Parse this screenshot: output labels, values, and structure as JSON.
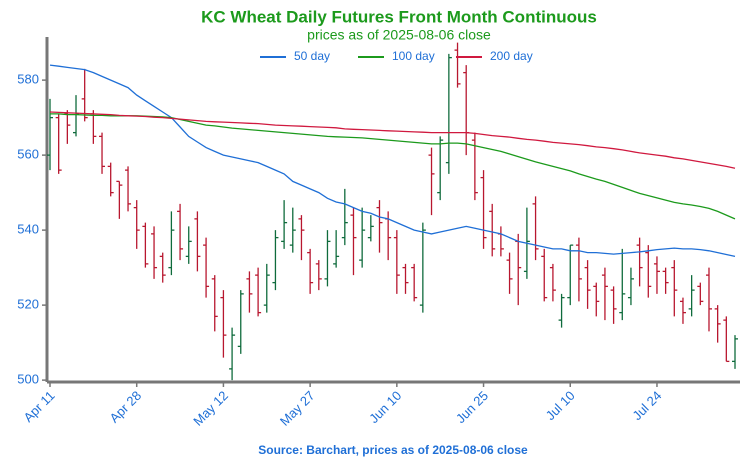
{
  "chart_data": {
    "type": "ohlc",
    "title": "KC Wheat Daily Futures Front Month Continuous",
    "subtitle": "prices as of 2025-08-06 close",
    "source": "Source: Barchart, prices as of 2025-08-06 close",
    "categories": [
      "Apr 11",
      null,
      null,
      null,
      null,
      null,
      null,
      null,
      null,
      null,
      "Apr 28",
      null,
      null,
      null,
      null,
      null,
      null,
      null,
      null,
      null,
      "May 12",
      null,
      null,
      null,
      null,
      null,
      null,
      null,
      null,
      null,
      "May 27",
      null,
      null,
      null,
      null,
      null,
      null,
      null,
      null,
      null,
      "Jun 10",
      null,
      null,
      null,
      null,
      null,
      null,
      null,
      null,
      null,
      "Jun 25",
      null,
      null,
      null,
      null,
      null,
      null,
      null,
      null,
      null,
      "Jul 10",
      null,
      null,
      null,
      null,
      null,
      null,
      null,
      null,
      null,
      "Jul 24",
      null,
      null,
      null,
      null,
      null,
      null,
      null,
      null,
      null
    ],
    "ohlc": {
      "up_color": "#0f6b3c",
      "down_color": "#b8172f",
      "open": [
        560,
        570,
        571,
        566,
        575,
        571,
        565,
        557,
        553,
        556,
        546,
        541,
        539,
        533,
        530,
        545,
        533,
        543,
        536,
        527,
        522,
        503,
        509,
        527,
        528,
        520,
        526,
        537,
        536,
        543,
        534,
        531,
        527,
        531,
        538,
        544,
        532,
        538,
        546,
        543,
        538,
        530,
        530,
        520,
        560,
        550,
        558,
        588,
        582,
        564,
        554,
        545,
        539,
        532,
        537,
        529,
        547,
        533,
        530,
        516,
        522,
        536,
        530,
        525,
        528,
        524,
        518,
        522,
        536,
        534,
        531,
        529,
        530,
        521,
        519,
        525,
        528,
        519,
        516,
        505
      ],
      "high": [
        575,
        571,
        572,
        576,
        583,
        572,
        566,
        558,
        553,
        557,
        548,
        542,
        541,
        534,
        545,
        547,
        541,
        545,
        538,
        528,
        524,
        514,
        524,
        529,
        530,
        531,
        540,
        548,
        546,
        544,
        535,
        532,
        540,
        540,
        551,
        546,
        546,
        544,
        548,
        545,
        540,
        531,
        531,
        542,
        562,
        565,
        587,
        590,
        584,
        566,
        556,
        547,
        541,
        534,
        539,
        546,
        549,
        535,
        531,
        523,
        536,
        538,
        532,
        526,
        530,
        525,
        535,
        530,
        538,
        536,
        533,
        530,
        532,
        522,
        528,
        526,
        530,
        520,
        517,
        512
      ],
      "low": [
        556,
        555,
        563,
        565,
        569,
        563,
        555,
        549,
        543,
        545,
        535,
        530,
        527,
        526,
        528,
        532,
        531,
        529,
        522,
        513,
        506,
        500,
        507,
        518,
        517,
        518,
        524,
        535,
        534,
        532,
        523,
        524,
        525,
        530,
        536,
        528,
        530,
        537,
        534,
        532,
        523,
        523,
        521,
        518,
        544,
        548,
        555,
        578,
        560,
        548,
        535,
        533,
        533,
        523,
        520,
        527,
        532,
        521,
        521,
        514,
        520,
        521,
        519,
        517,
        516,
        515,
        516,
        520,
        525,
        522,
        523,
        523,
        517,
        515,
        517,
        520,
        513,
        510,
        505,
        503
      ],
      "close": [
        570,
        556,
        568,
        571,
        570,
        565,
        557,
        550,
        552,
        547,
        540,
        531,
        530,
        528,
        540,
        535,
        537,
        533,
        525,
        517,
        512,
        512,
        523,
        523,
        518,
        528,
        538,
        542,
        540,
        540,
        526,
        527,
        537,
        533,
        542,
        538,
        540,
        541,
        542,
        538,
        528,
        526,
        522,
        540,
        555,
        564,
        586,
        579,
        566,
        550,
        538,
        535,
        535,
        527,
        530,
        537,
        535,
        522,
        524,
        522,
        536,
        527,
        524,
        521,
        525,
        519,
        523,
        527,
        530,
        525,
        529,
        526,
        524,
        518,
        524,
        521,
        519,
        515,
        505,
        511
      ]
    },
    "series": [
      {
        "name": "50 day",
        "color": "#1f6fd6",
        "values": [
          584,
          583.7,
          583.4,
          583.1,
          582.8,
          582,
          581,
          580,
          579,
          578,
          576,
          574.5,
          573,
          571.5,
          570,
          567.5,
          565,
          563.5,
          562,
          561,
          560,
          559.5,
          559,
          558.5,
          558,
          557,
          556,
          555,
          553,
          552,
          551,
          550,
          548.5,
          547.5,
          547,
          546,
          545,
          544.5,
          543.5,
          543,
          542,
          541,
          540,
          539.5,
          539,
          539.5,
          540,
          540.5,
          541,
          540.5,
          540,
          539.5,
          539,
          538,
          537,
          536.5,
          536,
          535.5,
          535,
          535,
          534.5,
          534.5,
          534,
          534,
          533.8,
          533.6,
          533.8,
          534,
          534.2,
          534.5,
          534.8,
          535,
          535.2,
          535,
          535,
          534.8,
          534.5,
          534,
          533.5,
          533
        ]
      },
      {
        "name": "100 day",
        "color": "#1c9a1c",
        "values": [
          571,
          571,
          570.8,
          570.8,
          570.7,
          570.6,
          570.6,
          570.5,
          570.5,
          570.5,
          570.5,
          570.4,
          570.3,
          570.2,
          570,
          569.5,
          569,
          568.5,
          568,
          567.8,
          567.5,
          567.2,
          567,
          566.8,
          566.6,
          566.4,
          566.2,
          566,
          565.8,
          565.6,
          565.4,
          565.2,
          565,
          564.9,
          564.8,
          564.7,
          564.6,
          564.4,
          564.2,
          564,
          563.8,
          563.6,
          563.4,
          563.2,
          563,
          563,
          563.2,
          563.2,
          563,
          562.5,
          562,
          561.5,
          561,
          560.3,
          559.6,
          558.9,
          558.2,
          557.6,
          557,
          556.4,
          555.8,
          555,
          554.3,
          553.6,
          553,
          552.2,
          551.4,
          550.6,
          549.8,
          549.2,
          548.6,
          548,
          547.4,
          547,
          546.7,
          546.3,
          545.8,
          545,
          544,
          543
        ]
      },
      {
        "name": "200 day",
        "color": "#d0193f",
        "values": [
          571.5,
          571.4,
          571.3,
          571.2,
          571.1,
          571,
          570.9,
          570.8,
          570.6,
          570.5,
          570.4,
          570.3,
          570.1,
          570,
          569.8,
          569.6,
          569.4,
          569.2,
          569,
          568.9,
          568.8,
          568.7,
          568.6,
          568.5,
          568.4,
          568.2,
          568,
          567.9,
          567.8,
          567.7,
          567.6,
          567.5,
          567.4,
          567.3,
          567,
          566.9,
          566.8,
          566.7,
          566.6,
          566.5,
          566.4,
          566.3,
          566.2,
          566.1,
          566,
          566,
          566,
          566,
          566,
          565.8,
          565.5,
          565.2,
          565,
          564.8,
          564.5,
          564.2,
          564,
          563.7,
          563.4,
          563.2,
          563,
          562.8,
          562.5,
          562.2,
          562,
          561.7,
          561.4,
          561,
          560.6,
          560.3,
          560,
          559.7,
          559.3,
          559,
          558.6,
          558.2,
          557.8,
          557.4,
          557,
          556.5
        ]
      }
    ],
    "ylim": [
      499.5,
      591.5
    ],
    "yticks": [
      500,
      520,
      540,
      560,
      580
    ],
    "title_color": "#1c9a1c",
    "grid": false
  }
}
